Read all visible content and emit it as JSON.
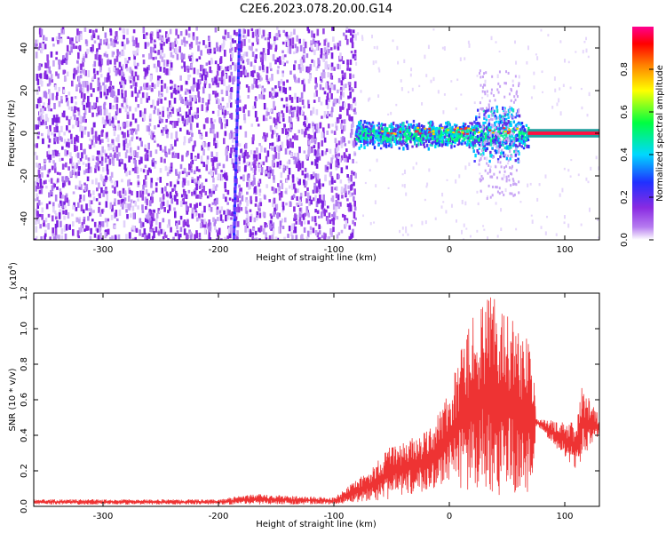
{
  "title": "C2E6.2023.078.20.00.G14",
  "chart_data": [
    {
      "type": "heatmap",
      "title": "C2E6.2023.078.20.00.G14",
      "xlabel": "Height of straight line (km)",
      "ylabel": "Frequency (Hz)",
      "xlim": [
        -360,
        130
      ],
      "ylim": [
        -50,
        50
      ],
      "xticks": [
        -300,
        -200,
        -100,
        0,
        100
      ],
      "yticks": [
        -40,
        -20,
        0,
        20,
        40
      ],
      "colorbar": {
        "label": "Normalized spectral amplitude",
        "range": [
          0,
          1
        ],
        "ticks": [
          "0.0",
          "0.2",
          "0.4",
          "0.6",
          "0.8"
        ],
        "colormap": [
          "#ffffff",
          "#8a2be2",
          "#2030ff",
          "#00d8ff",
          "#00ff40",
          "#ffff00",
          "#ff8000",
          "#ff0000",
          "#ff0090"
        ]
      },
      "regions": [
        {
          "x": [
            -360,
            -82
          ],
          "y": [
            -50,
            50
          ],
          "amplitude": 0.1,
          "description_pattern": "broadband noise"
        },
        {
          "x": [
            -187,
            -182
          ],
          "y": [
            -50,
            50
          ],
          "amplitude": 0.18,
          "description_pattern": "vertical streak"
        },
        {
          "x": [
            -82,
            68
          ],
          "y": [
            -8,
            8
          ],
          "amplitude": 0.45
        },
        {
          "x": [
            68,
            130
          ],
          "y": [
            -2,
            2
          ],
          "amplitude": 0.85
        }
      ]
    },
    {
      "type": "line",
      "xlabel": "Height of straight line (km)",
      "ylabel": "SNR (10 * v/v)",
      "y_multiplier": "(x10",
      "y_multiplier_exp": "4",
      "y_multiplier_close": ")",
      "xlim": [
        -360,
        130
      ],
      "ylim": [
        0,
        12000
      ],
      "xticks": [
        -300,
        -200,
        -100,
        0,
        100
      ],
      "yticks": [
        "0.0",
        "0.2",
        "0.4",
        "0.6",
        "0.8",
        "1.0",
        "1.2"
      ],
      "color": "#ee3333",
      "envelope": {
        "x": [
          -360,
          -200,
          -170,
          -100,
          -70,
          -50,
          -20,
          0,
          20,
          40,
          60,
          72,
          75,
          78,
          110,
          115,
          130
        ],
        "y_max": [
          400,
          400,
          700,
          500,
          2000,
          3500,
          4200,
          6500,
          11000,
          12000,
          10500,
          9000,
          5000,
          4900,
          4700,
          7000,
          5000
        ],
        "y_min": [
          100,
          100,
          100,
          100,
          300,
          400,
          800,
          1200,
          800,
          500,
          800,
          800,
          4500,
          4400,
          2000,
          2500,
          4000
        ]
      }
    }
  ]
}
